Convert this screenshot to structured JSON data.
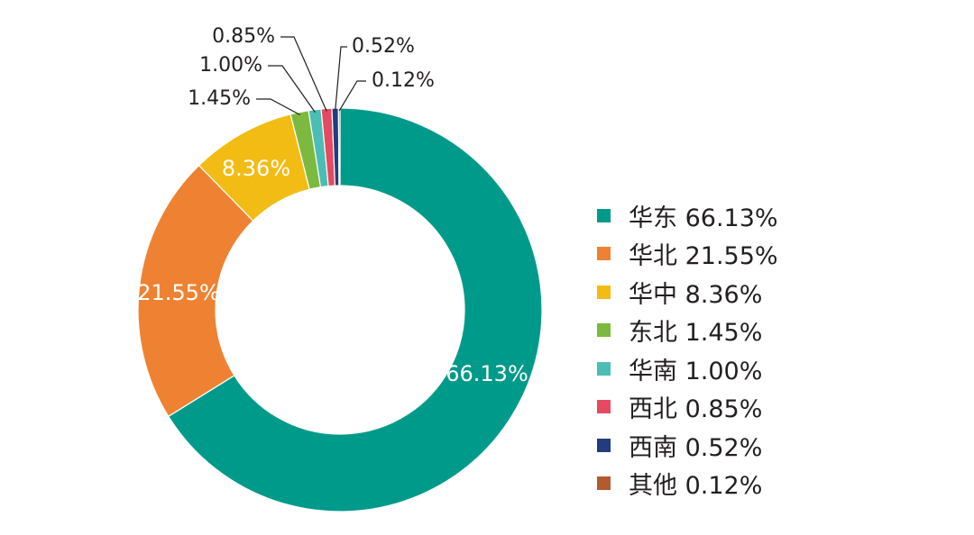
{
  "chart_data": {
    "type": "pie",
    "variant": "donut",
    "legend_position": "right",
    "slices": [
      {
        "label": "华东",
        "value": 66.13,
        "value_label": "66.13%",
        "color": "#009a8a"
      },
      {
        "label": "华北",
        "value": 21.55,
        "value_label": "21.55%",
        "color": "#ee8232"
      },
      {
        "label": "华中",
        "value": 8.36,
        "value_label": "8.36%",
        "color": "#f2bc14"
      },
      {
        "label": "东北",
        "value": 1.45,
        "value_label": "1.45%",
        "color": "#7cba3f"
      },
      {
        "label": "华南",
        "value": 1.0,
        "value_label": "1.00%",
        "color": "#4cbdb5"
      },
      {
        "label": "西北",
        "value": 0.85,
        "value_label": "0.85%",
        "color": "#e54a60"
      },
      {
        "label": "西南",
        "value": 0.52,
        "value_label": "0.52%",
        "color": "#243c7e"
      },
      {
        "label": "其他",
        "value": 0.12,
        "value_label": "0.12%",
        "color": "#b45a30"
      }
    ],
    "legend": [
      "华东 66.13%",
      "华北 21.55%",
      "华中 8.36%",
      "东北 1.45%",
      "华南 1.00%",
      "西北 0.85%",
      "西南 0.52%",
      "其他 0.12%"
    ]
  }
}
